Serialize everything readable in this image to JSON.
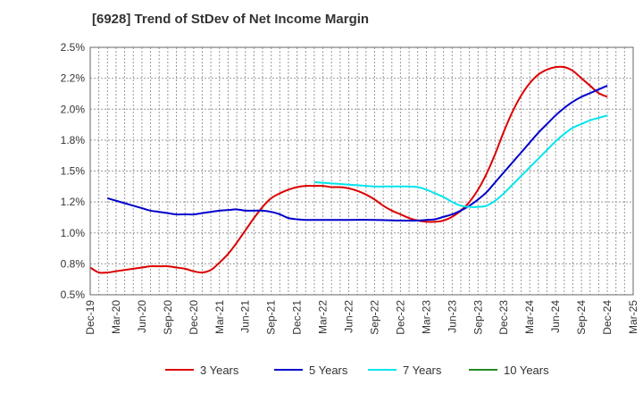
{
  "chart_data": {
    "type": "line",
    "title": "[6928]  Trend of StDev of Net Income Margin",
    "xlabel": "",
    "ylabel": "",
    "ylim": [
      0.5,
      2.5
    ],
    "yticks": [
      "0.5%",
      "0.8%",
      "1.0%",
      "1.2%",
      "1.5%",
      "1.8%",
      "2.0%",
      "2.2%",
      "2.5%"
    ],
    "ytick_values": [
      0.5,
      0.75,
      1.0,
      1.25,
      1.5,
      1.75,
      2.0,
      2.25,
      2.5
    ],
    "categories": [
      "Dec-19",
      "Mar-20",
      "Jun-20",
      "Sep-20",
      "Dec-20",
      "Mar-21",
      "Jun-21",
      "Sep-21",
      "Dec-21",
      "Mar-22",
      "Jun-22",
      "Sep-22",
      "Dec-22",
      "Mar-23",
      "Jun-23",
      "Sep-23",
      "Dec-23",
      "Mar-24",
      "Jun-24",
      "Sep-24",
      "Dec-24",
      "Mar-25"
    ],
    "grid": true,
    "legend_position": "bottom",
    "series": [
      {
        "name": "3 Years",
        "color": "#dd0000",
        "points": [
          [
            "Dec-19",
            0.72
          ],
          [
            "Jan-20",
            0.68
          ],
          [
            "Feb-20",
            0.68
          ],
          [
            "Mar-20",
            0.69
          ],
          [
            "Apr-20",
            0.7
          ],
          [
            "May-20",
            0.71
          ],
          [
            "Jun-20",
            0.72
          ],
          [
            "Jul-20",
            0.73
          ],
          [
            "Aug-20",
            0.73
          ],
          [
            "Sep-20",
            0.73
          ],
          [
            "Oct-20",
            0.72
          ],
          [
            "Nov-20",
            0.71
          ],
          [
            "Dec-20",
            0.69
          ],
          [
            "Jan-21",
            0.68
          ],
          [
            "Feb-21",
            0.7
          ],
          [
            "Mar-21",
            0.76
          ],
          [
            "Apr-21",
            0.83
          ],
          [
            "May-21",
            0.92
          ],
          [
            "Jun-21",
            1.02
          ],
          [
            "Jul-21",
            1.12
          ],
          [
            "Aug-21",
            1.21
          ],
          [
            "Sep-21",
            1.28
          ],
          [
            "Oct-21",
            1.32
          ],
          [
            "Nov-21",
            1.35
          ],
          [
            "Dec-21",
            1.37
          ],
          [
            "Jan-22",
            1.38
          ],
          [
            "Feb-22",
            1.38
          ],
          [
            "Mar-22",
            1.38
          ],
          [
            "Apr-22",
            1.37
          ],
          [
            "May-22",
            1.37
          ],
          [
            "Jun-22",
            1.36
          ],
          [
            "Jul-22",
            1.34
          ],
          [
            "Aug-22",
            1.31
          ],
          [
            "Sep-22",
            1.27
          ],
          [
            "Oct-22",
            1.22
          ],
          [
            "Nov-22",
            1.18
          ],
          [
            "Dec-22",
            1.15
          ],
          [
            "Jan-23",
            1.12
          ],
          [
            "Feb-23",
            1.1
          ],
          [
            "Mar-23",
            1.09
          ],
          [
            "Apr-23",
            1.09
          ],
          [
            "May-23",
            1.1
          ],
          [
            "Jun-23",
            1.13
          ],
          [
            "Jul-23",
            1.18
          ],
          [
            "Aug-23",
            1.25
          ],
          [
            "Sep-23",
            1.35
          ],
          [
            "Oct-23",
            1.48
          ],
          [
            "Nov-23",
            1.64
          ],
          [
            "Dec-23",
            1.82
          ],
          [
            "Jan-24",
            1.98
          ],
          [
            "Feb-24",
            2.11
          ],
          [
            "Mar-24",
            2.21
          ],
          [
            "Apr-24",
            2.28
          ],
          [
            "May-24",
            2.32
          ],
          [
            "Jun-24",
            2.34
          ],
          [
            "Jul-24",
            2.34
          ],
          [
            "Aug-24",
            2.31
          ],
          [
            "Sep-24",
            2.25
          ],
          [
            "Oct-24",
            2.19
          ],
          [
            "Nov-24",
            2.13
          ],
          [
            "Dec-24",
            2.1
          ]
        ]
      },
      {
        "name": "5 Years",
        "color": "#0000cc",
        "points": [
          [
            "Feb-20",
            1.28
          ],
          [
            "Mar-20",
            1.26
          ],
          [
            "Apr-20",
            1.24
          ],
          [
            "May-20",
            1.22
          ],
          [
            "Jun-20",
            1.2
          ],
          [
            "Jul-20",
            1.18
          ],
          [
            "Aug-20",
            1.17
          ],
          [
            "Sep-20",
            1.16
          ],
          [
            "Oct-20",
            1.15
          ],
          [
            "Nov-20",
            1.15
          ],
          [
            "Dec-20",
            1.15
          ],
          [
            "Jan-21",
            1.16
          ],
          [
            "Feb-21",
            1.17
          ],
          [
            "Mar-21",
            1.18
          ],
          [
            "Apr-21",
            1.185
          ],
          [
            "May-21",
            1.19
          ],
          [
            "Jun-21",
            1.18
          ],
          [
            "Jul-21",
            1.18
          ],
          [
            "Aug-21",
            1.18
          ],
          [
            "Sep-21",
            1.17
          ],
          [
            "Oct-21",
            1.15
          ],
          [
            "Nov-21",
            1.12
          ],
          [
            "Dec-21",
            1.11
          ],
          [
            "Jan-22",
            1.105
          ],
          [
            "Mar-22",
            1.105
          ],
          [
            "Jun-22",
            1.105
          ],
          [
            "Sep-22",
            1.105
          ],
          [
            "Dec-22",
            1.1
          ],
          [
            "Feb-23",
            1.1
          ],
          [
            "Mar-23",
            1.105
          ],
          [
            "Apr-23",
            1.11
          ],
          [
            "May-23",
            1.13
          ],
          [
            "Jun-23",
            1.15
          ],
          [
            "Jul-23",
            1.18
          ],
          [
            "Aug-23",
            1.22
          ],
          [
            "Sep-23",
            1.27
          ],
          [
            "Oct-23",
            1.33
          ],
          [
            "Nov-23",
            1.41
          ],
          [
            "Dec-23",
            1.49
          ],
          [
            "Jan-24",
            1.57
          ],
          [
            "Feb-24",
            1.65
          ],
          [
            "Mar-24",
            1.73
          ],
          [
            "Apr-24",
            1.81
          ],
          [
            "May-24",
            1.88
          ],
          [
            "Jun-24",
            1.95
          ],
          [
            "Jul-24",
            2.01
          ],
          [
            "Aug-24",
            2.06
          ],
          [
            "Sep-24",
            2.1
          ],
          [
            "Oct-24",
            2.13
          ],
          [
            "Nov-24",
            2.16
          ],
          [
            "Dec-24",
            2.19
          ]
        ]
      },
      {
        "name": "7 Years",
        "color": "#00e5ee",
        "points": [
          [
            "Feb-22",
            1.41
          ],
          [
            "Mar-22",
            1.405
          ],
          [
            "Apr-22",
            1.4
          ],
          [
            "May-22",
            1.395
          ],
          [
            "Jun-22",
            1.39
          ],
          [
            "Jul-22",
            1.385
          ],
          [
            "Aug-22",
            1.38
          ],
          [
            "Sep-22",
            1.375
          ],
          [
            "Oct-22",
            1.375
          ],
          [
            "Nov-22",
            1.375
          ],
          [
            "Dec-22",
            1.375
          ],
          [
            "Jan-23",
            1.375
          ],
          [
            "Feb-23",
            1.37
          ],
          [
            "Mar-23",
            1.35
          ],
          [
            "Apr-23",
            1.32
          ],
          [
            "May-23",
            1.29
          ],
          [
            "Jun-23",
            1.25
          ],
          [
            "Jul-23",
            1.22
          ],
          [
            "Aug-23",
            1.21
          ],
          [
            "Sep-23",
            1.21
          ],
          [
            "Oct-23",
            1.22
          ],
          [
            "Nov-23",
            1.26
          ],
          [
            "Dec-23",
            1.32
          ],
          [
            "Jan-24",
            1.39
          ],
          [
            "Feb-24",
            1.46
          ],
          [
            "Mar-24",
            1.53
          ],
          [
            "Apr-24",
            1.6
          ],
          [
            "May-24",
            1.67
          ],
          [
            "Jun-24",
            1.74
          ],
          [
            "Jul-24",
            1.8
          ],
          [
            "Aug-24",
            1.85
          ],
          [
            "Sep-24",
            1.88
          ],
          [
            "Oct-24",
            1.91
          ],
          [
            "Nov-24",
            1.93
          ],
          [
            "Dec-24",
            1.95
          ]
        ]
      },
      {
        "name": "10 Years",
        "color": "#228b22",
        "points": []
      }
    ]
  }
}
